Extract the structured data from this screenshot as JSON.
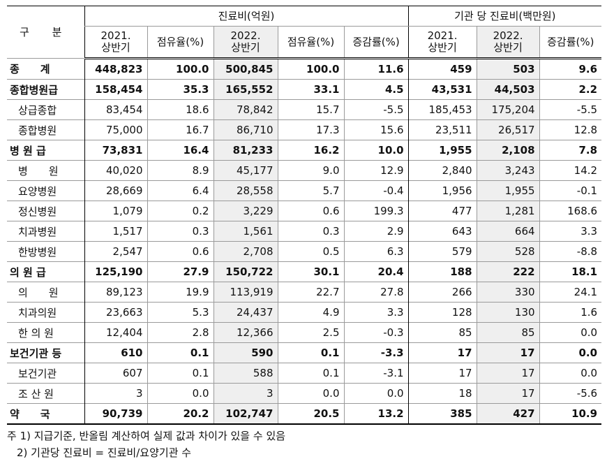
{
  "header": {
    "gubun": "구 분",
    "group1": "진료비(억원)",
    "group2": "기관 당 진료비(백만원)",
    "cols": [
      "2021.\n상반기",
      "점유율(%)",
      "2022.\n상반기",
      "점유율(%)",
      "증감률(%)",
      "2021.\n상반기",
      "2022.\n상반기",
      "증감률(%)"
    ]
  },
  "rows": [
    {
      "label": "종　　계",
      "bold": true,
      "values": [
        "448,823",
        "100.0",
        "500,845",
        "100.0",
        "11.6",
        "459",
        "503",
        "9.6"
      ]
    },
    {
      "label": "종합병원급",
      "bold": true,
      "values": [
        "158,454",
        "35.3",
        "165,552",
        "33.1",
        "4.5",
        "43,531",
        "44,503",
        "2.2"
      ]
    },
    {
      "label": "상급종합",
      "bold": false,
      "values": [
        "83,454",
        "18.6",
        "78,842",
        "15.7",
        "-5.5",
        "185,453",
        "175,204",
        "-5.5"
      ]
    },
    {
      "label": "종합병원",
      "bold": false,
      "values": [
        "75,000",
        "16.7",
        "86,710",
        "17.3",
        "15.6",
        "23,511",
        "26,517",
        "12.8"
      ]
    },
    {
      "label": "병 원 급",
      "bold": true,
      "values": [
        "73,831",
        "16.4",
        "81,233",
        "16.2",
        "10.0",
        "1,955",
        "2,108",
        "7.8"
      ]
    },
    {
      "label": "병　　원",
      "bold": false,
      "values": [
        "40,020",
        "8.9",
        "45,177",
        "9.0",
        "12.9",
        "2,840",
        "3,243",
        "14.2"
      ]
    },
    {
      "label": "요양병원",
      "bold": false,
      "values": [
        "28,669",
        "6.4",
        "28,558",
        "5.7",
        "-0.4",
        "1,956",
        "1,955",
        "-0.1"
      ]
    },
    {
      "label": "정신병원",
      "bold": false,
      "values": [
        "1,079",
        "0.2",
        "3,229",
        "0.6",
        "199.3",
        "477",
        "1,281",
        "168.6"
      ]
    },
    {
      "label": "치과병원",
      "bold": false,
      "values": [
        "1,517",
        "0.3",
        "1,561",
        "0.3",
        "2.9",
        "643",
        "664",
        "3.3"
      ]
    },
    {
      "label": "한방병원",
      "bold": false,
      "values": [
        "2,547",
        "0.6",
        "2,708",
        "0.5",
        "6.3",
        "579",
        "528",
        "-8.8"
      ]
    },
    {
      "label": "의 원 급",
      "bold": true,
      "values": [
        "125,190",
        "27.9",
        "150,722",
        "30.1",
        "20.4",
        "188",
        "222",
        "18.1"
      ]
    },
    {
      "label": "의　　원",
      "bold": false,
      "values": [
        "89,123",
        "19.9",
        "113,919",
        "22.7",
        "27.8",
        "266",
        "330",
        "24.1"
      ]
    },
    {
      "label": "치과의원",
      "bold": false,
      "values": [
        "23,663",
        "5.3",
        "24,437",
        "4.9",
        "3.3",
        "128",
        "130",
        "1.6"
      ]
    },
    {
      "label": "한 의 원",
      "bold": false,
      "values": [
        "12,404",
        "2.8",
        "12,366",
        "2.5",
        "-0.3",
        "85",
        "85",
        "0.0"
      ]
    },
    {
      "label": "보건기관 등",
      "bold": true,
      "values": [
        "610",
        "0.1",
        "590",
        "0.1",
        "-3.3",
        "17",
        "17",
        "0.0"
      ]
    },
    {
      "label": "보건기관",
      "bold": false,
      "values": [
        "607",
        "0.1",
        "588",
        "0.1",
        "-3.1",
        "17",
        "17",
        "0.0"
      ]
    },
    {
      "label": "조 산 원",
      "bold": false,
      "values": [
        "3",
        "0.0",
        "3",
        "0.0",
        "0.0",
        "18",
        "17",
        "-5.6"
      ]
    },
    {
      "label": "약　　국",
      "bold": true,
      "values": [
        "90,739",
        "20.2",
        "102,747",
        "20.5",
        "13.2",
        "385",
        "427",
        "10.9"
      ]
    }
  ],
  "notes": [
    "주 1) 지급기준, 반올림 계산하여 실제 값과 차이가 있을 수 있음",
    "2) 기관당 진료비 = 진료비/요양기관 수"
  ]
}
